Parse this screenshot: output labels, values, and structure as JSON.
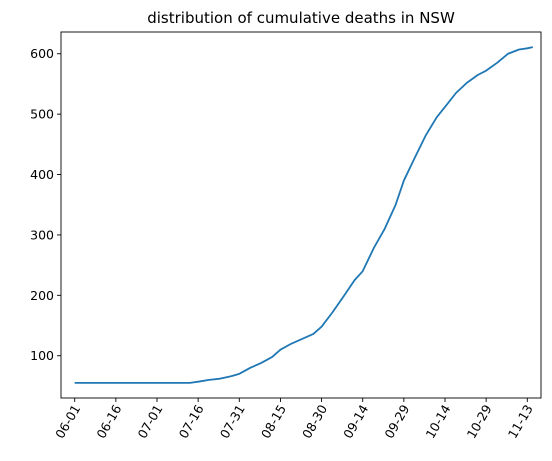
{
  "chart_data": {
    "type": "line",
    "title": "distribution of cumulative deaths in NSW",
    "xlabel": "",
    "ylabel": "",
    "x_tick_labels": [
      "06-01",
      "06-16",
      "07-01",
      "07-16",
      "07-31",
      "08-15",
      "08-30",
      "09-14",
      "09-29",
      "10-14",
      "10-29",
      "11-13"
    ],
    "y_ticks": [
      100,
      200,
      300,
      400,
      500,
      600
    ],
    "xlim": [
      "2021-05-27",
      "2021-11-18"
    ],
    "ylim": [
      30,
      636
    ],
    "grid": false,
    "color": "#1f77b4",
    "series": [
      {
        "x": [
          "2021-06-01",
          "2021-06-16",
          "2021-07-01",
          "2021-07-13",
          "2021-07-16",
          "2021-07-20",
          "2021-07-24",
          "2021-07-28",
          "2021-07-31",
          "2021-08-04",
          "2021-08-08",
          "2021-08-12",
          "2021-08-15",
          "2021-08-19",
          "2021-08-23",
          "2021-08-27",
          "2021-08-30",
          "2021-09-03",
          "2021-09-07",
          "2021-09-11",
          "2021-09-14",
          "2021-09-18",
          "2021-09-22",
          "2021-09-26",
          "2021-09-29",
          "2021-10-03",
          "2021-10-07",
          "2021-10-11",
          "2021-10-14",
          "2021-10-18",
          "2021-10-22",
          "2021-10-26",
          "2021-10-29",
          "2021-11-02",
          "2021-11-06",
          "2021-11-10",
          "2021-11-13",
          "2021-11-15"
        ],
        "y": [
          55,
          55,
          55,
          55,
          57,
          60,
          62,
          66,
          70,
          80,
          88,
          98,
          110,
          120,
          128,
          136,
          148,
          172,
          198,
          225,
          240,
          278,
          310,
          350,
          390,
          428,
          465,
          495,
          512,
          535,
          552,
          565,
          572,
          585,
          600,
          607,
          609,
          611
        ]
      }
    ]
  }
}
